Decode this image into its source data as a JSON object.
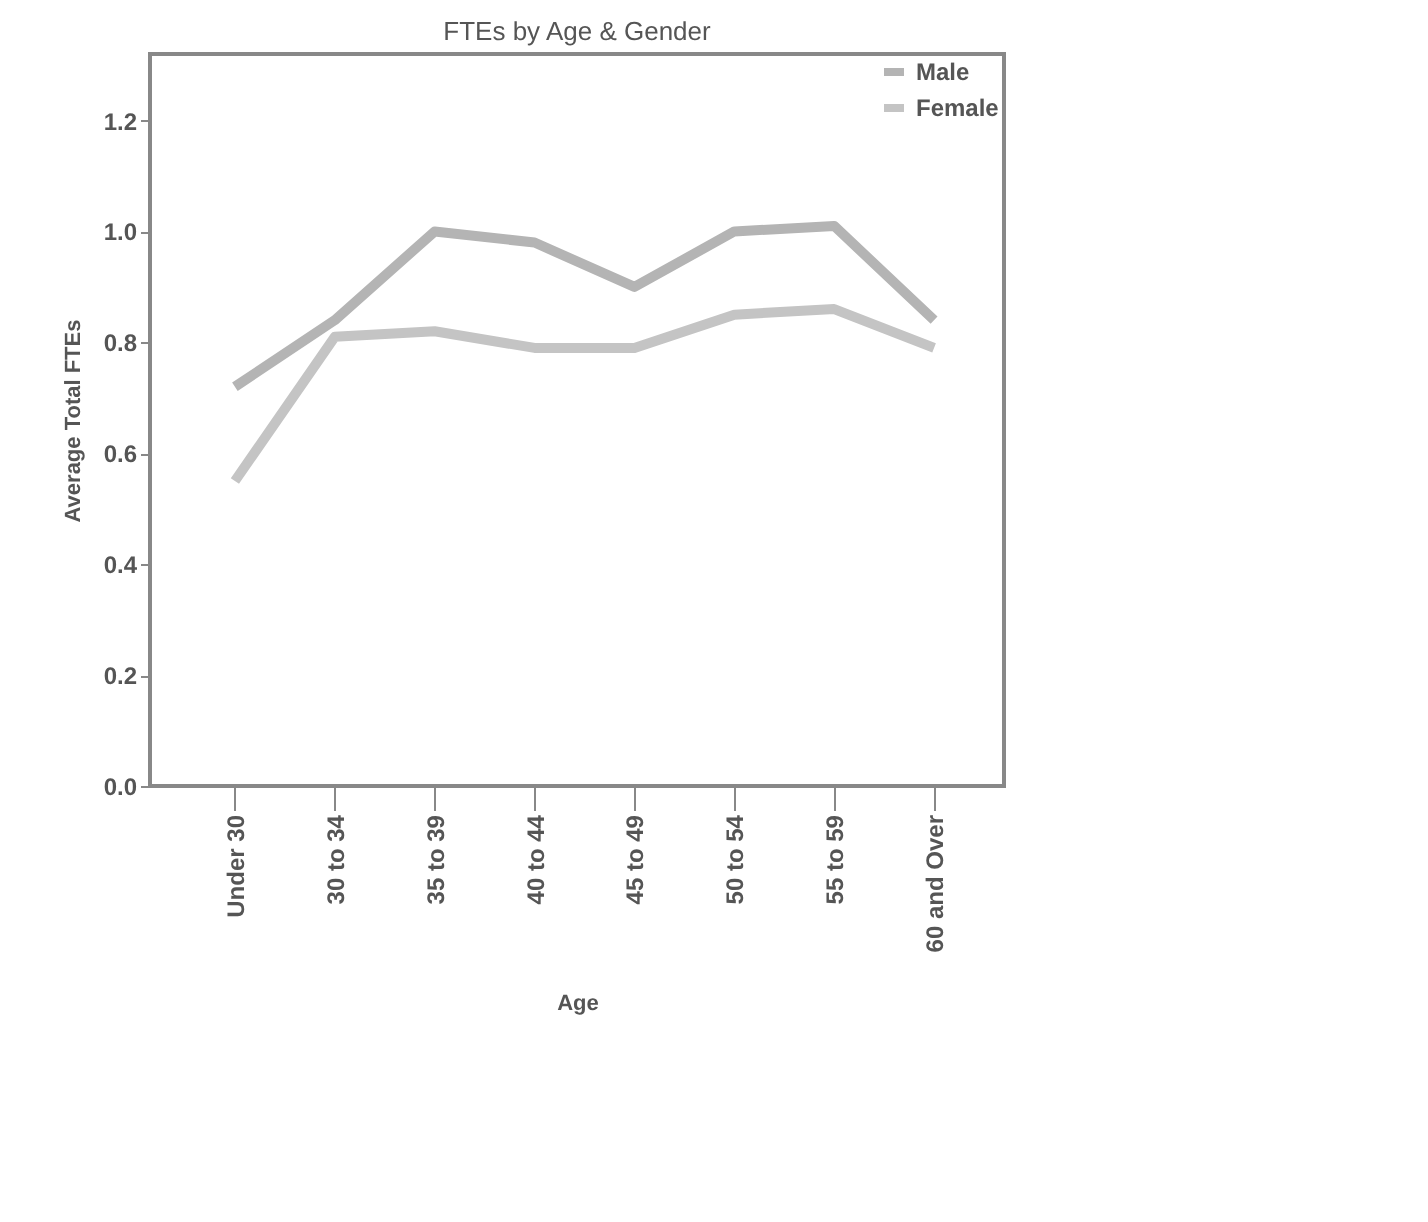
{
  "chart_data": {
    "type": "line",
    "title": "FTEs by Age & Gender",
    "xlabel": "Age",
    "ylabel": "Average Total FTEs",
    "categories": [
      "Under 30",
      "30 to 34",
      "35 to 39",
      "40 to 44",
      "45 to 49",
      "50 to 54",
      "55 to 59",
      "60 and Over"
    ],
    "series": [
      {
        "name": "Male",
        "color": "#b4b4b4",
        "values": [
          0.72,
          0.84,
          1.0,
          0.98,
          0.9,
          1.0,
          1.01,
          0.84
        ]
      },
      {
        "name": "Female",
        "color": "#c4c4c4",
        "values": [
          0.55,
          0.81,
          0.82,
          0.79,
          0.79,
          0.85,
          0.86,
          0.79
        ]
      }
    ],
    "ylim": [
      0,
      1.32
    ],
    "yticks": [
      {
        "value": 0,
        "label": "0.0"
      },
      0.2,
      0.4,
      0.6,
      0.8,
      {
        "value": 1,
        "label": "1.0"
      },
      1.2
    ],
    "grid": false,
    "legend": "top right",
    "marker": "none",
    "line_style": "solid"
  }
}
